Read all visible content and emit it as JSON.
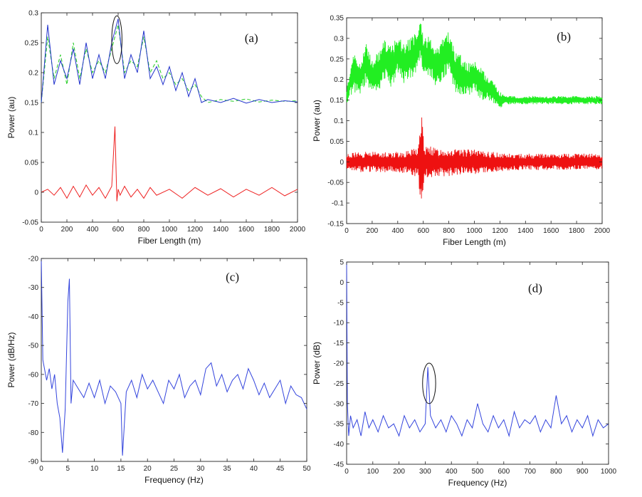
{
  "chart_data": [
    {
      "id": "a",
      "type": "line",
      "panel_label": "(a)",
      "xlabel": "Fiber Length (m)",
      "ylabel": "Power (au)",
      "xlim": [
        0,
        2000
      ],
      "ylim": [
        -0.05,
        0.3
      ],
      "xticks": [
        0,
        200,
        400,
        600,
        800,
        1000,
        1200,
        1400,
        1600,
        1800,
        2000
      ],
      "yticks": [
        -0.05,
        0,
        0.05,
        0.1,
        0.15,
        0.2,
        0.25,
        0.3
      ],
      "ytick_labels": [
        "-0.05",
        "0",
        "0.05",
        "0.1",
        "0.15",
        "0.2",
        "0.25",
        "0.3"
      ],
      "grid": false,
      "series": [
        {
          "color": "#22cc22",
          "dash": "5,3",
          "x": [
            0,
            50,
            100,
            150,
            200,
            250,
            300,
            350,
            400,
            450,
            500,
            550,
            600,
            650,
            700,
            750,
            800,
            850,
            900,
            950,
            1000,
            1050,
            1100,
            1150,
            1200,
            1250,
            1300,
            1400,
            1500,
            1600,
            1700,
            1800,
            1900,
            2000
          ],
          "y": [
            0.15,
            0.26,
            0.19,
            0.23,
            0.18,
            0.25,
            0.19,
            0.24,
            0.2,
            0.22,
            0.2,
            0.24,
            0.28,
            0.2,
            0.22,
            0.21,
            0.26,
            0.2,
            0.22,
            0.19,
            0.2,
            0.18,
            0.19,
            0.17,
            0.18,
            0.16,
            0.15,
            0.155,
            0.152,
            0.156,
            0.151,
            0.154,
            0.152,
            0.153
          ]
        },
        {
          "color": "#2233cc",
          "dash": "",
          "x": [
            0,
            50,
            100,
            150,
            200,
            250,
            300,
            350,
            400,
            450,
            500,
            550,
            600,
            650,
            700,
            750,
            800,
            850,
            900,
            950,
            1000,
            1050,
            1100,
            1150,
            1200,
            1250,
            1300,
            1400,
            1500,
            1600,
            1700,
            1800,
            1900,
            2000
          ],
          "y": [
            0.15,
            0.28,
            0.18,
            0.22,
            0.19,
            0.24,
            0.18,
            0.25,
            0.19,
            0.23,
            0.19,
            0.25,
            0.29,
            0.19,
            0.23,
            0.2,
            0.27,
            0.19,
            0.21,
            0.18,
            0.21,
            0.17,
            0.2,
            0.16,
            0.19,
            0.15,
            0.155,
            0.15,
            0.157,
            0.149,
            0.155,
            0.15,
            0.153,
            0.151
          ]
        },
        {
          "color": "#ee2222",
          "dash": "",
          "x": [
            0,
            50,
            100,
            150,
            200,
            250,
            300,
            350,
            400,
            450,
            500,
            550,
            575,
            590,
            600,
            615,
            650,
            700,
            750,
            800,
            850,
            900,
            1000,
            1100,
            1200,
            1300,
            1400,
            1500,
            1600,
            1700,
            1800,
            1900,
            2000
          ],
          "y": [
            0,
            0.005,
            -0.005,
            0.008,
            -0.01,
            0.01,
            -0.008,
            0.012,
            -0.005,
            0.008,
            -0.01,
            0.01,
            0.11,
            -0.015,
            0.005,
            -0.005,
            0.01,
            -0.008,
            0.005,
            -0.01,
            0.008,
            -0.005,
            0.005,
            -0.01,
            0.008,
            -0.005,
            0.006,
            -0.008,
            0.005,
            -0.005,
            0.008,
            -0.006,
            0.005
          ]
        }
      ],
      "annotation": {
        "type": "ellipse",
        "cx": 590,
        "cy": 0.255,
        "rx": 40,
        "ry": 0.04
      }
    },
    {
      "id": "b",
      "type": "line",
      "panel_label": "(b)",
      "xlabel": "Fiber Length (m)",
      "ylabel": "Power (au)",
      "xlim": [
        0,
        2000
      ],
      "ylim": [
        -0.15,
        0.35
      ],
      "xticks": [
        0,
        200,
        400,
        600,
        800,
        1000,
        1200,
        1400,
        1600,
        1800,
        2000
      ],
      "yticks": [
        -0.15,
        -0.1,
        -0.05,
        0,
        0.05,
        0.1,
        0.15,
        0.2,
        0.25,
        0.3,
        0.35
      ],
      "ytick_labels": [
        "-0.15",
        "-0.1",
        "-0.05",
        "0",
        "0.05",
        "0.1",
        "0.15",
        "0.2",
        "0.25",
        "0.3",
        "0.35"
      ],
      "grid": false,
      "series": [
        {
          "color": "#22ee22",
          "dash": "",
          "x": [
            0,
            50,
            100,
            150,
            200,
            250,
            300,
            350,
            400,
            450,
            500,
            550,
            580,
            600,
            650,
            700,
            750,
            800,
            850,
            900,
            950,
            1000,
            1050,
            1100,
            1150,
            1200,
            1250,
            1400,
            1600,
            1800,
            2000
          ],
          "y": [
            0.16,
            0.22,
            0.2,
            0.24,
            0.21,
            0.22,
            0.25,
            0.23,
            0.26,
            0.24,
            0.25,
            0.27,
            0.3,
            0.25,
            0.26,
            0.23,
            0.25,
            0.27,
            0.22,
            0.21,
            0.2,
            0.21,
            0.19,
            0.18,
            0.17,
            0.15,
            0.15,
            0.15,
            0.15,
            0.15,
            0.15
          ],
          "amp": [
            0.02,
            0.05,
            0.04,
            0.05,
            0.04,
            0.05,
            0.05,
            0.05,
            0.05,
            0.05,
            0.05,
            0.05,
            0.05,
            0.05,
            0.05,
            0.05,
            0.05,
            0.05,
            0.05,
            0.05,
            0.04,
            0.04,
            0.04,
            0.03,
            0.03,
            0.02,
            0.01,
            0.01,
            0.01,
            0.01,
            0.01
          ]
        },
        {
          "color": "#ee1111",
          "dash": "",
          "x": [
            0,
            100,
            200,
            300,
            400,
            500,
            560,
            585,
            610,
            700,
            800,
            900,
            1000,
            1100,
            1200,
            1300,
            1400,
            1500,
            1600,
            1700,
            1800,
            1900,
            2000
          ],
          "y": [
            0,
            0,
            0,
            0,
            0,
            0,
            0,
            0,
            0,
            0,
            0,
            0,
            0,
            0,
            0,
            0,
            0,
            0,
            0,
            0,
            0,
            0,
            0
          ],
          "amp": [
            0.02,
            0.025,
            0.025,
            0.025,
            0.025,
            0.03,
            0.04,
            0.135,
            0.04,
            0.035,
            0.035,
            0.03,
            0.03,
            0.025,
            0.025,
            0.02,
            0.02,
            0.02,
            0.02,
            0.02,
            0.02,
            0.02,
            0.02
          ]
        }
      ]
    },
    {
      "id": "c",
      "type": "line",
      "panel_label": "(c)",
      "xlabel": "Frequency (Hz)",
      "ylabel": "Power (dB/Hz)",
      "xlim": [
        0,
        50
      ],
      "ylim": [
        -90,
        -20
      ],
      "xticks": [
        0,
        5,
        10,
        15,
        20,
        25,
        30,
        35,
        40,
        45,
        50
      ],
      "yticks": [
        -90,
        -80,
        -70,
        -60,
        -50,
        -40,
        -30,
        -20
      ],
      "ytick_labels": [
        "-90",
        "-80",
        "-70",
        "-60",
        "-50",
        "-40",
        "-30",
        "-20"
      ],
      "grid": false,
      "series": [
        {
          "color": "#3344dd",
          "dash": "",
          "x": [
            0,
            0.3,
            1,
            1.5,
            2,
            2.5,
            3,
            3.5,
            4,
            4.5,
            5,
            5.3,
            5.6,
            6,
            7,
            8,
            9,
            10,
            11,
            12,
            13,
            14,
            15,
            15.3,
            16,
            17,
            18,
            19,
            20,
            21,
            22,
            23,
            24,
            25,
            26,
            27,
            28,
            29,
            30,
            31,
            32,
            33,
            34,
            35,
            36,
            37,
            38,
            39,
            40,
            41,
            42,
            43,
            44,
            45,
            46,
            47,
            48,
            49,
            50
          ],
          "y": [
            -20,
            -55,
            -62,
            -58,
            -65,
            -60,
            -70,
            -75,
            -87,
            -72,
            -35,
            -27,
            -70,
            -62,
            -65,
            -68,
            -63,
            -68,
            -62,
            -70,
            -64,
            -66,
            -70,
            -88,
            -66,
            -62,
            -68,
            -60,
            -65,
            -62,
            -66,
            -70,
            -62,
            -65,
            -60,
            -68,
            -64,
            -62,
            -67,
            -58,
            -56,
            -64,
            -60,
            -66,
            -62,
            -60,
            -65,
            -58,
            -62,
            -67,
            -63,
            -68,
            -65,
            -62,
            -70,
            -64,
            -67,
            -68,
            -72
          ]
        }
      ]
    },
    {
      "id": "d",
      "type": "line",
      "panel_label": "(d)",
      "xlabel": "Frequency (Hz)",
      "ylabel": "Power (dB)",
      "xlim": [
        0,
        1000
      ],
      "ylim": [
        -45,
        5
      ],
      "xticks": [
        0,
        100,
        200,
        300,
        400,
        500,
        600,
        700,
        800,
        900,
        1000
      ],
      "yticks": [
        -45,
        -40,
        -35,
        -30,
        -25,
        -20,
        -15,
        -10,
        -5,
        0,
        5
      ],
      "ytick_labels": [
        "-45",
        "-40",
        "-35",
        "-30",
        "-25",
        "-20",
        "-15",
        "-10",
        "-5",
        "0",
        "5"
      ],
      "grid": false,
      "series": [
        {
          "color": "#3344dd",
          "dash": "",
          "x": [
            0,
            3,
            8,
            15,
            25,
            40,
            55,
            70,
            85,
            100,
            120,
            140,
            160,
            180,
            200,
            220,
            240,
            260,
            280,
            300,
            310,
            320,
            340,
            360,
            380,
            400,
            420,
            440,
            460,
            480,
            500,
            520,
            540,
            560,
            580,
            600,
            620,
            640,
            660,
            680,
            700,
            720,
            740,
            760,
            780,
            800,
            820,
            840,
            860,
            880,
            900,
            920,
            940,
            960,
            980,
            1000
          ],
          "y": [
            5,
            -30,
            -38,
            -33,
            -36,
            -34,
            -38,
            -32,
            -36,
            -34,
            -37,
            -33,
            -36,
            -35,
            -38,
            -33,
            -36,
            -34,
            -37,
            -35,
            -21,
            -33,
            -36,
            -34,
            -37,
            -33,
            -35,
            -38,
            -34,
            -36,
            -30,
            -35,
            -37,
            -33,
            -36,
            -34,
            -38,
            -32,
            -36,
            -34,
            -35,
            -33,
            -37,
            -34,
            -36,
            -28,
            -35,
            -33,
            -37,
            -34,
            -36,
            -33,
            -38,
            -34,
            -36,
            -35
          ]
        }
      ],
      "annotation": {
        "type": "ellipse",
        "cx": 315,
        "cy": -25,
        "rx": 25,
        "ry": 5
      }
    }
  ]
}
